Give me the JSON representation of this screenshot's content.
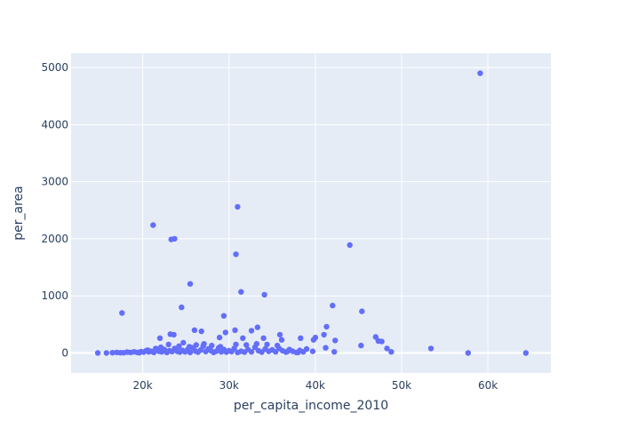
{
  "chart_data": {
    "type": "scatter",
    "title": "",
    "xlabel": "per_capita_income_2010",
    "ylabel": "per_area",
    "xlim": [
      11700,
      67300
    ],
    "ylim": [
      -350,
      5250
    ],
    "x_ticks": [
      20000,
      30000,
      40000,
      50000,
      60000
    ],
    "x_tick_labels": [
      "20k",
      "30k",
      "40k",
      "50k",
      "60k"
    ],
    "y_ticks": [
      0,
      1000,
      2000,
      3000,
      4000,
      5000
    ],
    "y_tick_labels": [
      "0",
      "1000",
      "2000",
      "3000",
      "4000",
      "5000"
    ],
    "grid": true,
    "colors": {
      "plot_bg": "#e5ecf6",
      "grid": "#ffffff",
      "marker": "#636efa",
      "text": "#2a3f5f"
    },
    "series": [
      {
        "points": [
          [
            14800,
            0
          ],
          [
            15800,
            0
          ],
          [
            16500,
            5
          ],
          [
            17000,
            10
          ],
          [
            17400,
            5
          ],
          [
            17800,
            5
          ],
          [
            18200,
            15
          ],
          [
            18600,
            10
          ],
          [
            19000,
            20
          ],
          [
            19400,
            10
          ],
          [
            19800,
            25
          ],
          [
            20100,
            15
          ],
          [
            20400,
            40
          ],
          [
            20700,
            20
          ],
          [
            21000,
            30
          ],
          [
            21300,
            10
          ],
          [
            21600,
            50
          ],
          [
            21900,
            30
          ],
          [
            22200,
            20
          ],
          [
            22500,
            60
          ],
          [
            22800,
            10
          ],
          [
            23100,
            40
          ],
          [
            23400,
            25
          ],
          [
            23700,
            80
          ],
          [
            24000,
            30
          ],
          [
            24300,
            15
          ],
          [
            24600,
            45
          ],
          [
            24900,
            20
          ],
          [
            25200,
            60
          ],
          [
            25500,
            10
          ],
          [
            25800,
            90
          ],
          [
            26100,
            35
          ],
          [
            26400,
            15
          ],
          [
            26700,
            50
          ],
          [
            27000,
            120
          ],
          [
            27300,
            25
          ],
          [
            27600,
            70
          ],
          [
            27900,
            40
          ],
          [
            28200,
            10
          ],
          [
            28500,
            30
          ],
          [
            28800,
            90
          ],
          [
            29100,
            20
          ],
          [
            29400,
            60
          ],
          [
            29700,
            15
          ],
          [
            30000,
            40
          ],
          [
            30300,
            25
          ],
          [
            30600,
            80
          ],
          [
            31000,
            10
          ],
          [
            31400,
            30
          ],
          [
            31800,
            15
          ],
          [
            32200,
            60
          ],
          [
            32600,
            20
          ],
          [
            33000,
            100
          ],
          [
            33400,
            40
          ],
          [
            33800,
            15
          ],
          [
            34200,
            70
          ],
          [
            34600,
            30
          ],
          [
            35000,
            55
          ],
          [
            35400,
            20
          ],
          [
            35800,
            80
          ],
          [
            36200,
            40
          ],
          [
            36600,
            15
          ],
          [
            37000,
            60
          ],
          [
            37400,
            30
          ],
          [
            37800,
            10
          ],
          [
            38200,
            45
          ],
          [
            38600,
            20
          ],
          [
            39000,
            70
          ],
          [
            19600,
            5
          ],
          [
            20600,
            50
          ],
          [
            21500,
            80
          ],
          [
            22100,
            100
          ],
          [
            23000,
            150
          ],
          [
            24200,
            120
          ],
          [
            25400,
            110
          ],
          [
            26200,
            140
          ],
          [
            27100,
            160
          ],
          [
            28000,
            130
          ],
          [
            29000,
            110
          ],
          [
            30800,
            150
          ],
          [
            32000,
            140
          ],
          [
            33200,
            160
          ],
          [
            34400,
            150
          ],
          [
            35600,
            130
          ],
          [
            22000,
            260
          ],
          [
            23200,
            330
          ],
          [
            23600,
            320
          ],
          [
            24700,
            180
          ],
          [
            26000,
            400
          ],
          [
            26800,
            380
          ],
          [
            28900,
            270
          ],
          [
            29600,
            360
          ],
          [
            30700,
            400
          ],
          [
            31600,
            260
          ],
          [
            32600,
            390
          ],
          [
            33300,
            450
          ],
          [
            34000,
            260
          ],
          [
            35900,
            320
          ],
          [
            36100,
            230
          ],
          [
            38300,
            260
          ],
          [
            39800,
            230
          ],
          [
            40000,
            270
          ],
          [
            41000,
            320
          ],
          [
            41300,
            460
          ],
          [
            42300,
            220
          ],
          [
            47000,
            280
          ],
          [
            47300,
            210
          ],
          [
            47700,
            200
          ],
          [
            45300,
            130
          ],
          [
            48300,
            80
          ],
          [
            48800,
            20
          ],
          [
            41200,
            90
          ],
          [
            42200,
            20
          ],
          [
            39700,
            30
          ],
          [
            38000,
            10
          ],
          [
            36800,
            30
          ],
          [
            53400,
            80
          ],
          [
            57700,
            0
          ],
          [
            64400,
            0
          ],
          [
            17600,
            700
          ],
          [
            21200,
            2240
          ],
          [
            24500,
            800
          ],
          [
            25500,
            1210
          ],
          [
            23300,
            1990
          ],
          [
            23700,
            2000
          ],
          [
            29400,
            650
          ],
          [
            30800,
            1730
          ],
          [
            31000,
            2560
          ],
          [
            31400,
            1070
          ],
          [
            34100,
            1020
          ],
          [
            42000,
            830
          ],
          [
            44000,
            1890
          ],
          [
            45400,
            730
          ],
          [
            59100,
            4900
          ]
        ]
      }
    ]
  }
}
